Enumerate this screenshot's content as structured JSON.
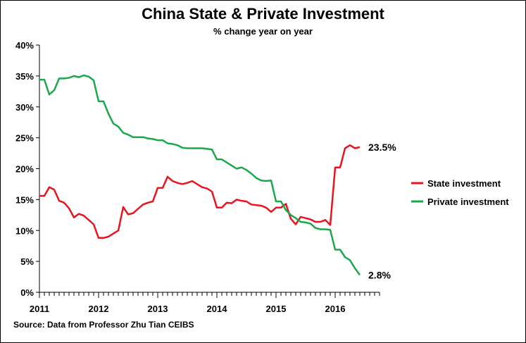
{
  "chart_data": {
    "type": "line",
    "title": "China State & Private Investment",
    "subtitle": "% change year on year",
    "source": "Source: Data from Professor Zhu Tian CEIBS",
    "xlabel": "",
    "ylabel": "",
    "ylim": [
      0,
      40
    ],
    "yticks": [
      0,
      5,
      10,
      15,
      20,
      25,
      30,
      35,
      40
    ],
    "ytick_format": "%",
    "xlim": [
      2011,
      2016.75
    ],
    "xticks": [
      2011,
      2012,
      2013,
      2014,
      2015,
      2016
    ],
    "grid": false,
    "legend_position": "right",
    "series": [
      {
        "name": "State investment",
        "color": "#e8141e",
        "end_label": "23.5%",
        "points": [
          [
            2011.0,
            15.6
          ],
          [
            2011.083,
            15.6
          ],
          [
            2011.167,
            17.0
          ],
          [
            2011.25,
            16.6
          ],
          [
            2011.333,
            14.8
          ],
          [
            2011.417,
            14.5
          ],
          [
            2011.5,
            13.6
          ],
          [
            2011.583,
            12.1
          ],
          [
            2011.667,
            12.7
          ],
          [
            2011.75,
            12.4
          ],
          [
            2011.833,
            11.7
          ],
          [
            2011.917,
            11.0
          ],
          [
            2012.0,
            8.8
          ],
          [
            2012.083,
            8.8
          ],
          [
            2012.167,
            9.0
          ],
          [
            2012.25,
            9.5
          ],
          [
            2012.333,
            10.0
          ],
          [
            2012.417,
            13.8
          ],
          [
            2012.5,
            12.6
          ],
          [
            2012.583,
            12.8
          ],
          [
            2012.667,
            13.5
          ],
          [
            2012.75,
            14.2
          ],
          [
            2012.833,
            14.5
          ],
          [
            2012.917,
            14.7
          ],
          [
            2013.0,
            16.9
          ],
          [
            2013.083,
            16.9
          ],
          [
            2013.167,
            18.7
          ],
          [
            2013.25,
            18.0
          ],
          [
            2013.333,
            17.7
          ],
          [
            2013.417,
            17.5
          ],
          [
            2013.5,
            17.7
          ],
          [
            2013.583,
            18.0
          ],
          [
            2013.667,
            17.5
          ],
          [
            2013.75,
            17.0
          ],
          [
            2013.833,
            16.8
          ],
          [
            2013.917,
            16.3
          ],
          [
            2014.0,
            13.7
          ],
          [
            2014.083,
            13.7
          ],
          [
            2014.167,
            14.5
          ],
          [
            2014.25,
            14.4
          ],
          [
            2014.333,
            15.0
          ],
          [
            2014.417,
            14.8
          ],
          [
            2014.5,
            14.7
          ],
          [
            2014.583,
            14.2
          ],
          [
            2014.667,
            14.1
          ],
          [
            2014.75,
            14.0
          ],
          [
            2014.833,
            13.7
          ],
          [
            2014.917,
            13.0
          ],
          [
            2015.0,
            13.7
          ],
          [
            2015.083,
            13.7
          ],
          [
            2015.167,
            14.3
          ],
          [
            2015.25,
            11.9
          ],
          [
            2015.333,
            11.0
          ],
          [
            2015.417,
            12.2
          ],
          [
            2015.5,
            12.0
          ],
          [
            2015.583,
            11.8
          ],
          [
            2015.667,
            11.4
          ],
          [
            2015.75,
            11.4
          ],
          [
            2015.833,
            11.7
          ],
          [
            2015.917,
            10.9
          ],
          [
            2016.0,
            20.2
          ],
          [
            2016.083,
            20.2
          ],
          [
            2016.167,
            23.3
          ],
          [
            2016.25,
            23.8
          ],
          [
            2016.333,
            23.3
          ],
          [
            2016.417,
            23.5
          ]
        ]
      },
      {
        "name": "Private investment",
        "color": "#1aa84a",
        "end_label": "2.8%",
        "points": [
          [
            2011.0,
            34.4
          ],
          [
            2011.083,
            34.4
          ],
          [
            2011.167,
            32.0
          ],
          [
            2011.25,
            32.7
          ],
          [
            2011.333,
            34.6
          ],
          [
            2011.417,
            34.6
          ],
          [
            2011.5,
            34.7
          ],
          [
            2011.583,
            35.0
          ],
          [
            2011.667,
            34.8
          ],
          [
            2011.75,
            35.1
          ],
          [
            2011.833,
            34.9
          ],
          [
            2011.917,
            34.3
          ],
          [
            2012.0,
            30.9
          ],
          [
            2012.083,
            30.9
          ],
          [
            2012.167,
            28.9
          ],
          [
            2012.25,
            27.3
          ],
          [
            2012.333,
            26.8
          ],
          [
            2012.417,
            25.8
          ],
          [
            2012.5,
            25.5
          ],
          [
            2012.583,
            25.1
          ],
          [
            2012.667,
            25.1
          ],
          [
            2012.75,
            25.1
          ],
          [
            2012.833,
            24.9
          ],
          [
            2012.917,
            24.8
          ],
          [
            2013.0,
            24.6
          ],
          [
            2013.083,
            24.6
          ],
          [
            2013.167,
            24.1
          ],
          [
            2013.25,
            24.0
          ],
          [
            2013.333,
            23.8
          ],
          [
            2013.417,
            23.4
          ],
          [
            2013.5,
            23.3
          ],
          [
            2013.583,
            23.3
          ],
          [
            2013.667,
            23.3
          ],
          [
            2013.75,
            23.3
          ],
          [
            2013.833,
            23.2
          ],
          [
            2013.917,
            23.1
          ],
          [
            2014.0,
            21.5
          ],
          [
            2014.083,
            21.5
          ],
          [
            2014.167,
            21.0
          ],
          [
            2014.25,
            20.5
          ],
          [
            2014.333,
            20.0
          ],
          [
            2014.417,
            20.2
          ],
          [
            2014.5,
            19.8
          ],
          [
            2014.583,
            19.2
          ],
          [
            2014.667,
            18.5
          ],
          [
            2014.75,
            18.1
          ],
          [
            2014.833,
            18.0
          ],
          [
            2014.917,
            18.1
          ],
          [
            2015.0,
            14.7
          ],
          [
            2015.083,
            14.7
          ],
          [
            2015.167,
            13.3
          ],
          [
            2015.25,
            12.5
          ],
          [
            2015.333,
            12.0
          ],
          [
            2015.417,
            11.4
          ],
          [
            2015.5,
            11.3
          ],
          [
            2015.583,
            11.1
          ],
          [
            2015.667,
            10.4
          ],
          [
            2015.75,
            10.2
          ],
          [
            2015.833,
            10.2
          ],
          [
            2015.917,
            10.1
          ],
          [
            2016.0,
            6.9
          ],
          [
            2016.083,
            6.9
          ],
          [
            2016.167,
            5.7
          ],
          [
            2016.25,
            5.2
          ],
          [
            2016.333,
            3.9
          ],
          [
            2016.417,
            2.8
          ]
        ]
      }
    ]
  }
}
